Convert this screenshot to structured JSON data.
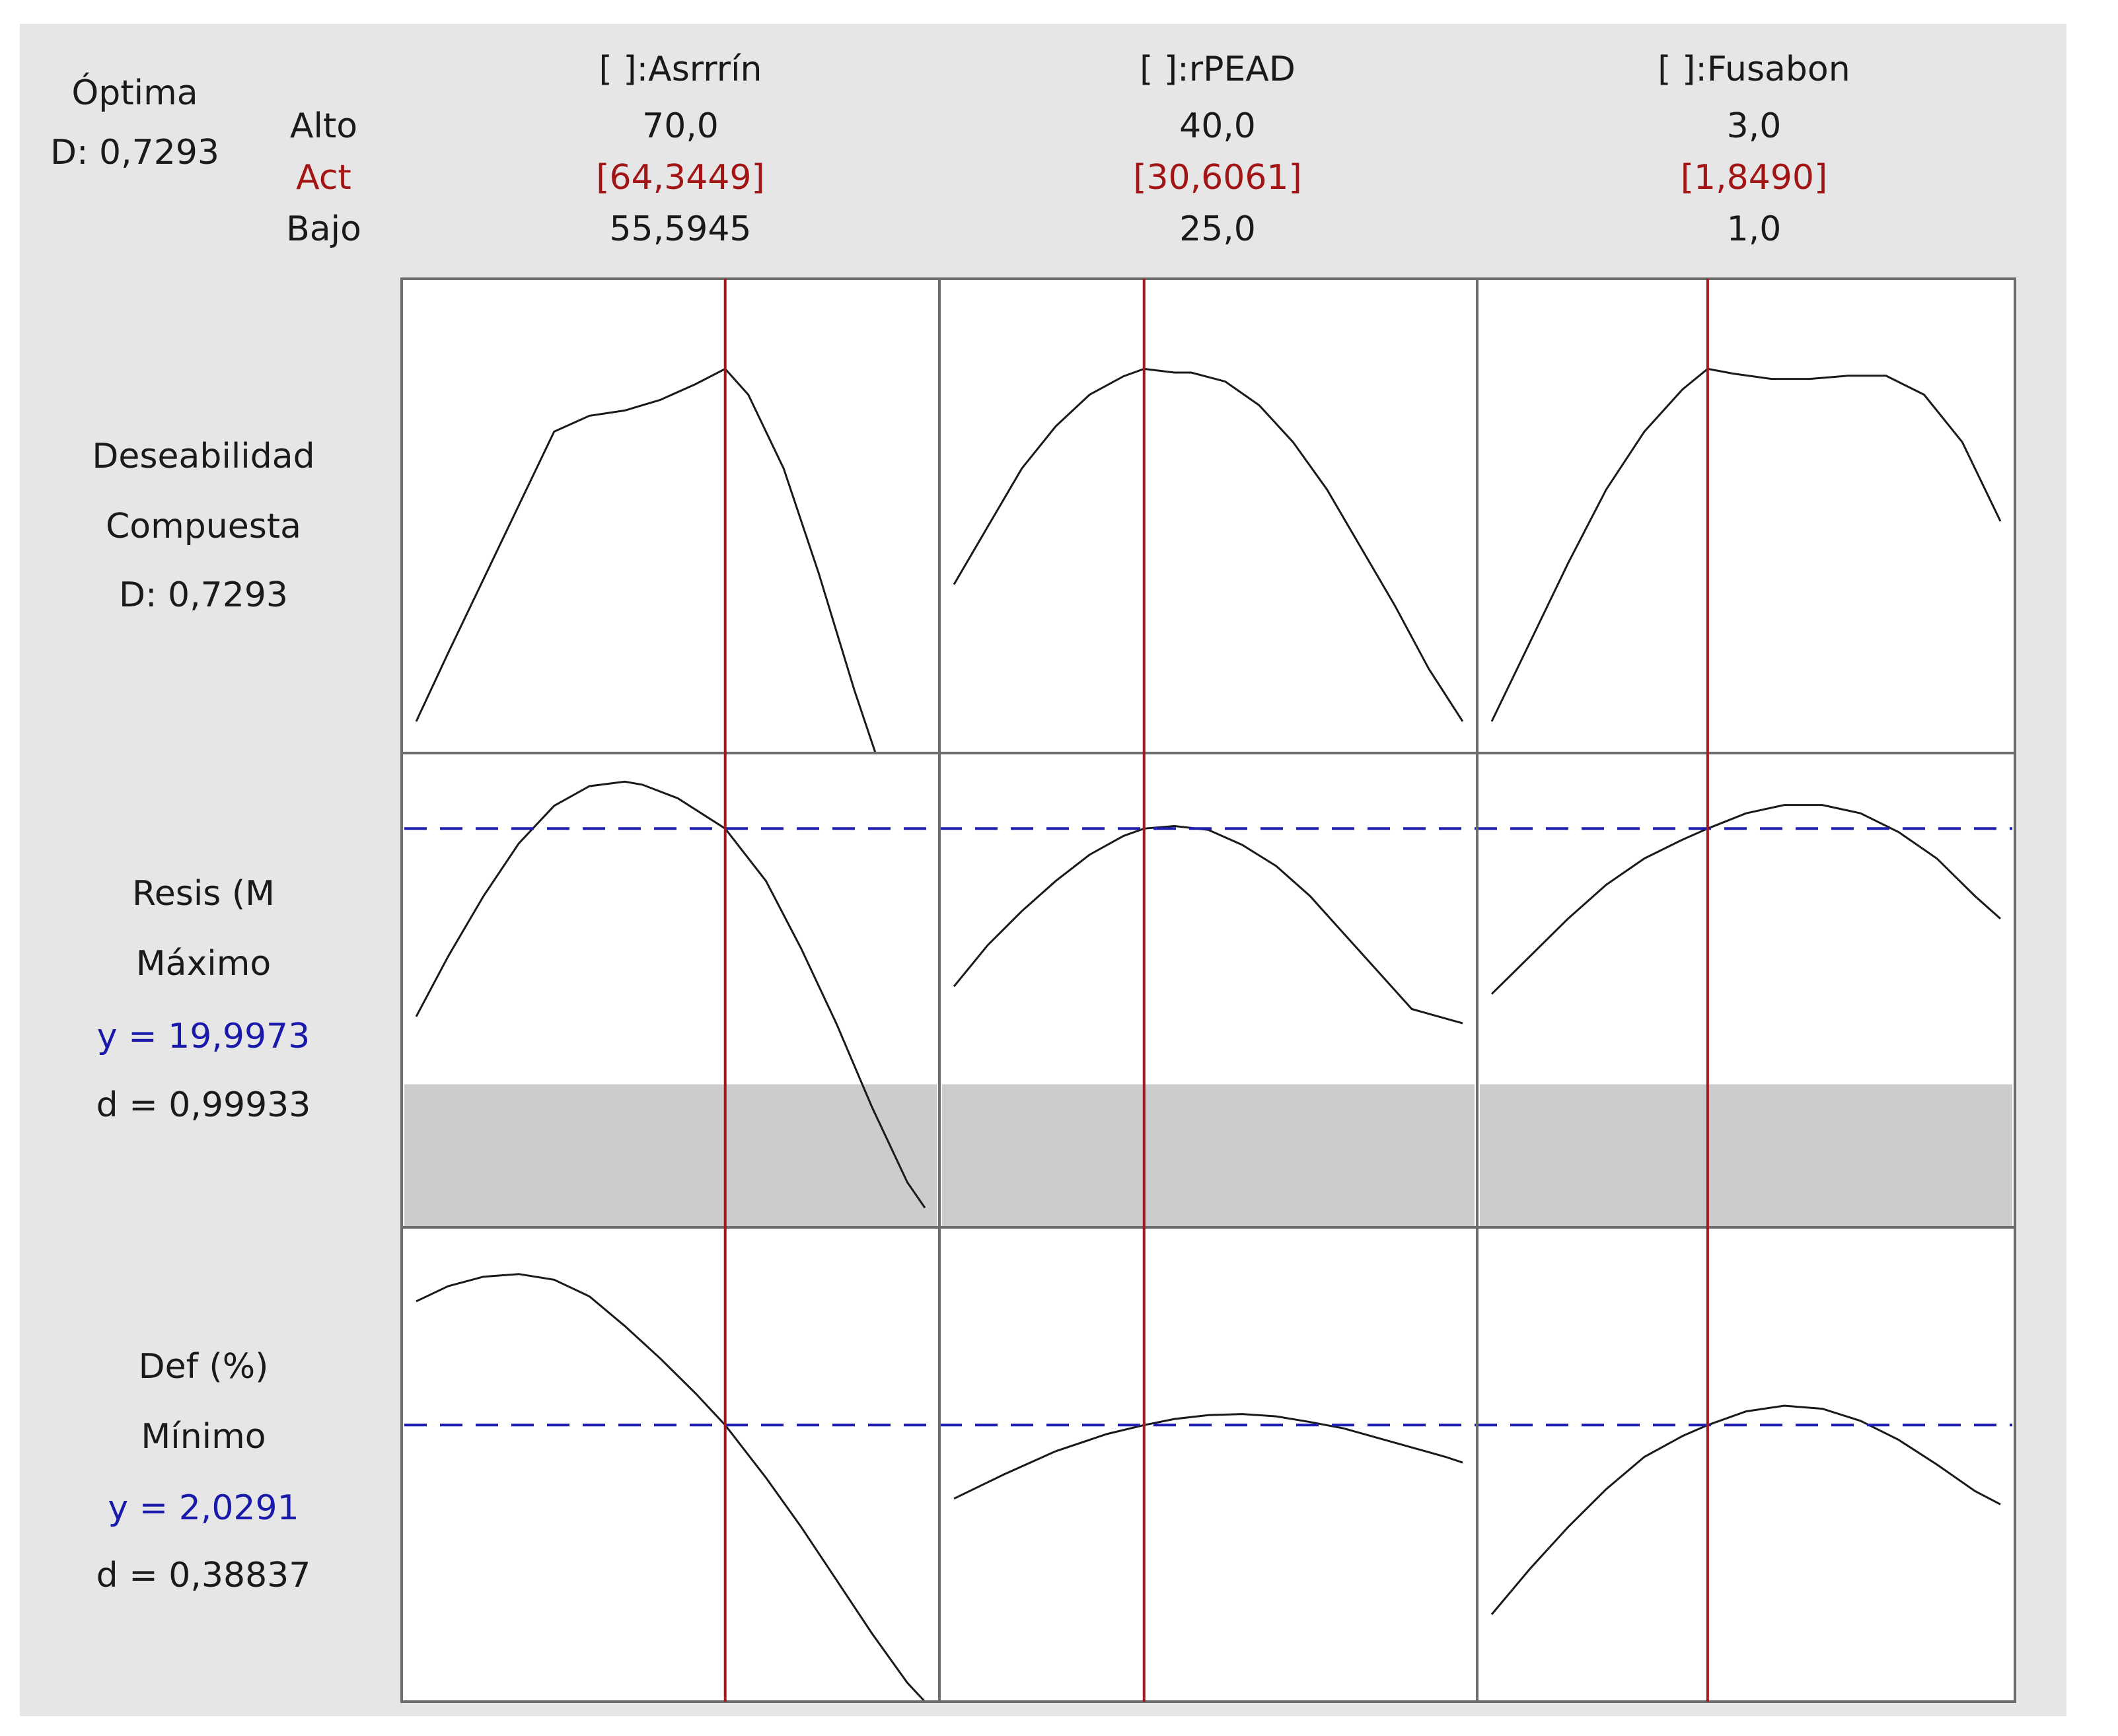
{
  "chart_data": {
    "type": "line",
    "optimal": {
      "title": "Óptima",
      "d_text": "D: 0,7293"
    },
    "setting_labels": {
      "high": "Alto",
      "current": "Act",
      "low": "Bajo"
    },
    "factors": [
      {
        "name": "[ ]:Asrrrín",
        "high": "70,0",
        "current": "[64,3449]",
        "low": "55,5945",
        "high_value": 70.0,
        "current_value": 64.3449,
        "low_value": 55.5945
      },
      {
        "name": "[ ]:rPEAD",
        "high": "40,0",
        "current": "[30,6061]",
        "low": "25,0",
        "high_value": 40.0,
        "current_value": 30.6061,
        "low_value": 25.0
      },
      {
        "name": "[ ]:Fusabon",
        "high": "3,0",
        "current": "[1,8490]",
        "low": "1,0",
        "high_value": 3.0,
        "current_value": 1.849,
        "low_value": 1.0
      }
    ],
    "responses": [
      {
        "key": "composite",
        "label_lines": [
          "Deseabilidad",
          "Compuesta",
          "D: 0,7293"
        ],
        "current_y": 0.7293,
        "ylim": [
          0.0,
          0.9
        ],
        "curves": [
          {
            "x": [
              55.5945,
              56.5,
              57.5,
              58.5,
              59.5,
              60.5,
              61.5,
              62.5,
              63.5,
              64.3449,
              65.0,
              66.0,
              67.0,
              68.0,
              68.6,
              69.2,
              70.0
            ],
            "y": [
              0.06,
              0.19,
              0.33,
              0.47,
              0.61,
              0.64,
              0.65,
              0.67,
              0.7,
              0.729,
              0.68,
              0.54,
              0.34,
              0.12,
              0.0,
              0.0,
              0.0
            ]
          },
          {
            "x": [
              25.0,
              26.0,
              27.0,
              28.0,
              29.0,
              30.0,
              30.6061,
              31.5,
              32.0,
              33.0,
              34.0,
              35.0,
              36.0,
              37.0,
              38.0,
              39.0,
              40.0
            ],
            "y": [
              0.32,
              0.43,
              0.54,
              0.62,
              0.68,
              0.715,
              0.729,
              0.722,
              0.722,
              0.705,
              0.66,
              0.59,
              0.5,
              0.39,
              0.28,
              0.16,
              0.06
            ]
          },
          {
            "x": [
              1.0,
              1.15,
              1.3,
              1.45,
              1.6,
              1.75,
              1.849,
              1.95,
              2.1,
              2.25,
              2.4,
              2.55,
              2.7,
              2.85,
              3.0
            ],
            "y": [
              0.06,
              0.21,
              0.36,
              0.5,
              0.61,
              0.69,
              0.729,
              0.72,
              0.71,
              0.71,
              0.716,
              0.716,
              0.68,
              0.59,
              0.44
            ]
          }
        ]
      },
      {
        "key": "resis",
        "label_lines": [
          "Resis (M",
          "Máximo",
          "y = 19,9973",
          "d = 0,99933"
        ],
        "current_y": 19.9973,
        "ylim": [
          14.7,
          21.0
        ],
        "shade": [
          14.7,
          16.6
        ],
        "curves": [
          {
            "x": [
              55.5945,
              56.5,
              57.5,
              58.5,
              59.5,
              60.5,
              61.5,
              62.0,
              63.0,
              64.3449,
              65.5,
              66.5,
              67.5,
              68.5,
              69.5,
              70.0
            ],
            "y": [
              17.5,
              18.3,
              19.1,
              19.8,
              20.3,
              20.56,
              20.62,
              20.58,
              20.4,
              19.997,
              19.3,
              18.4,
              17.4,
              16.3,
              15.3,
              14.96
            ]
          },
          {
            "x": [
              25.0,
              26.0,
              27.0,
              28.0,
              29.0,
              30.0,
              30.6061,
              31.5,
              32.5,
              33.5,
              34.5,
              35.5,
              36.5,
              37.5,
              38.5,
              40.0
            ],
            "y": [
              17.9,
              18.45,
              18.9,
              19.3,
              19.65,
              19.9,
              19.997,
              20.03,
              19.98,
              19.78,
              19.5,
              19.1,
              18.6,
              18.1,
              17.6,
              17.41
            ]
          },
          {
            "x": [
              1.0,
              1.15,
              1.3,
              1.45,
              1.6,
              1.75,
              1.849,
              2.0,
              2.15,
              2.3,
              2.45,
              2.6,
              2.75,
              2.9,
              3.0
            ],
            "y": [
              17.8,
              18.3,
              18.8,
              19.25,
              19.6,
              19.85,
              19.997,
              20.2,
              20.31,
              20.31,
              20.2,
              19.95,
              19.6,
              19.1,
              18.8
            ]
          }
        ]
      },
      {
        "key": "def",
        "label_lines": [
          "Def (%)",
          "Mínimo",
          "y = 2,0291",
          "d = 0,38837"
        ],
        "current_y": 2.0291,
        "ylim": [
          1.3,
          2.55
        ],
        "curves": [
          {
            "x": [
              55.5945,
              56.5,
              57.5,
              58.5,
              59.5,
              60.5,
              61.5,
              62.5,
              63.5,
              64.3449,
              65.5,
              66.5,
              67.5,
              68.5,
              69.5,
              70.0
            ],
            "y": [
              2.355,
              2.395,
              2.42,
              2.427,
              2.412,
              2.368,
              2.29,
              2.205,
              2.113,
              2.029,
              1.89,
              1.76,
              1.62,
              1.48,
              1.35,
              1.3
            ]
          },
          {
            "x": [
              25.0,
              26.5,
              28.0,
              29.5,
              30.6061,
              31.5,
              32.5,
              33.5,
              34.5,
              35.5,
              36.5,
              37.5,
              38.5,
              39.5,
              40.0
            ],
            "y": [
              1.835,
              1.9,
              1.96,
              2.005,
              2.029,
              2.045,
              2.055,
              2.058,
              2.052,
              2.037,
              2.02,
              1.995,
              1.97,
              1.945,
              1.93
            ]
          },
          {
            "x": [
              1.0,
              1.15,
              1.3,
              1.45,
              1.6,
              1.75,
              1.849,
              2.0,
              2.15,
              2.3,
              2.45,
              2.6,
              2.75,
              2.9,
              3.0
            ],
            "y": [
              1.53,
              1.65,
              1.76,
              1.86,
              1.945,
              2.0,
              2.029,
              2.065,
              2.08,
              2.072,
              2.04,
              1.99,
              1.925,
              1.855,
              1.82
            ]
          }
        ]
      }
    ]
  }
}
